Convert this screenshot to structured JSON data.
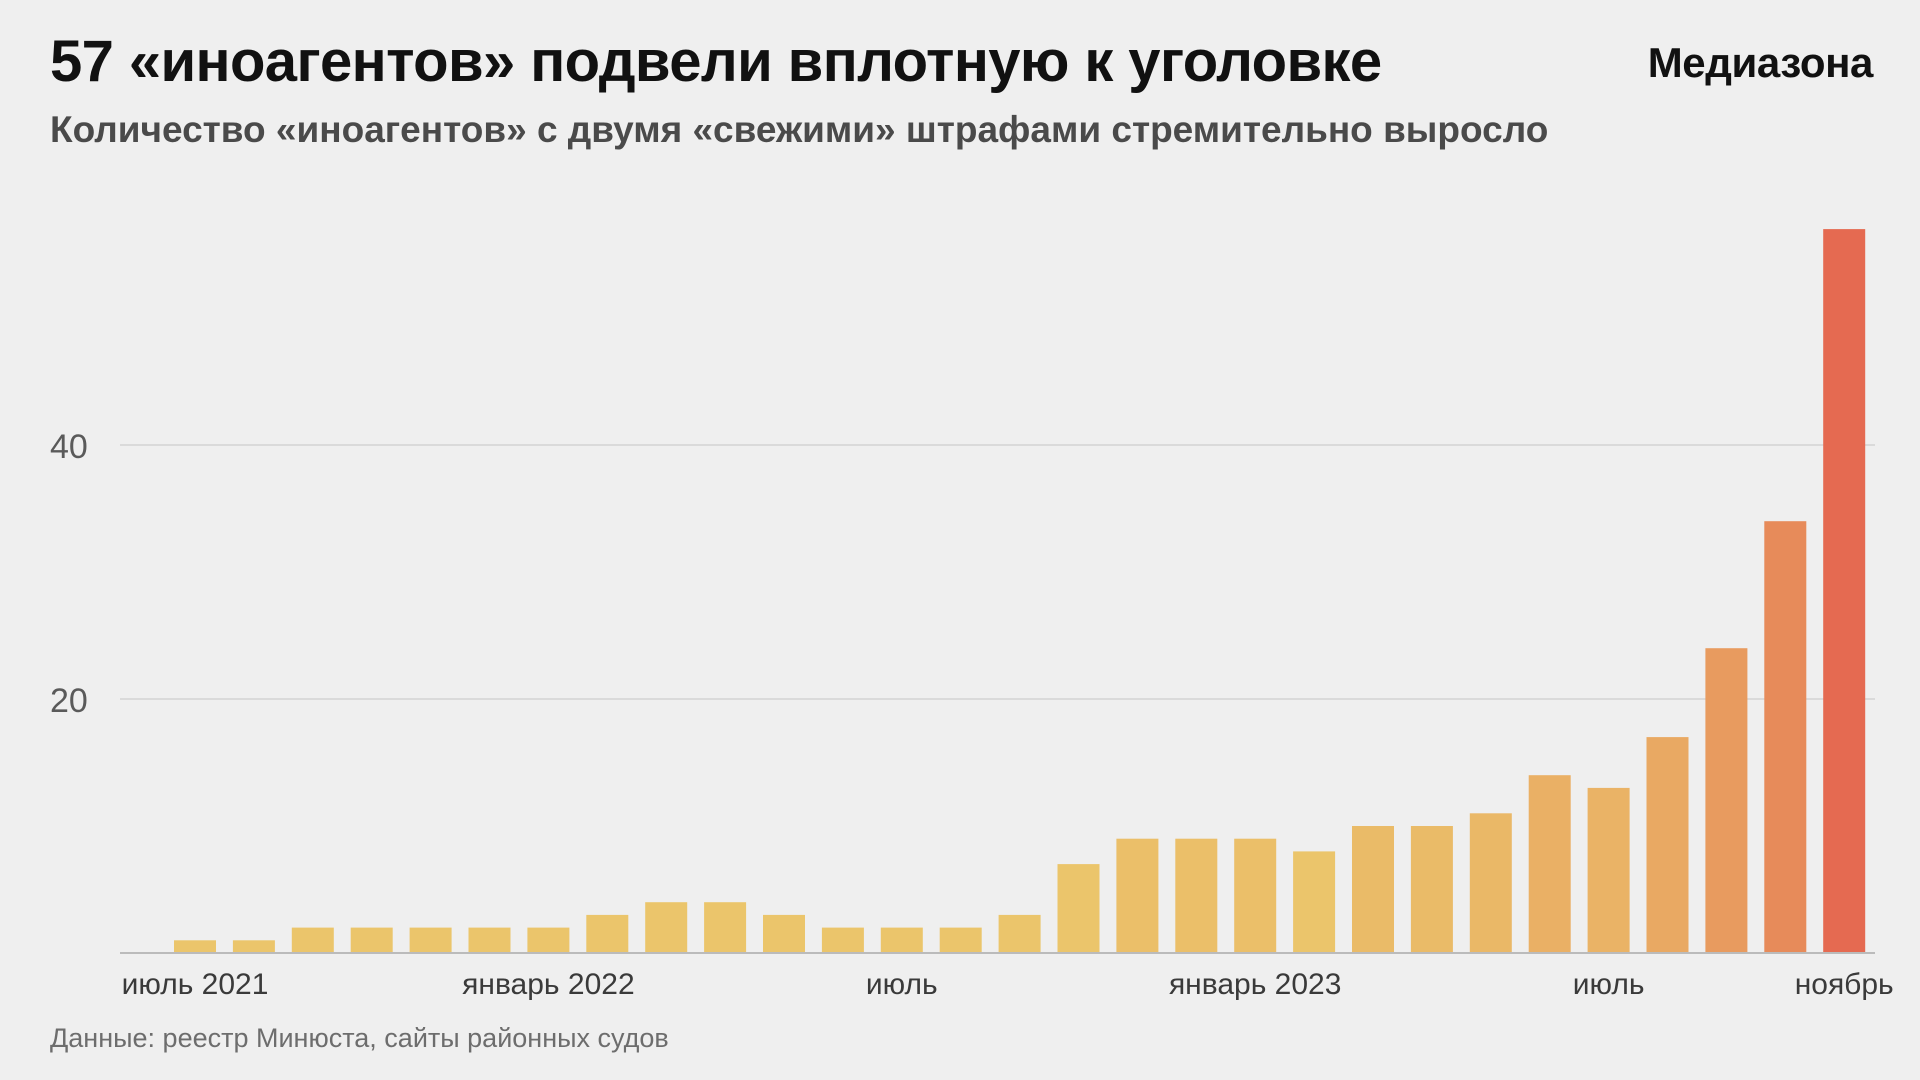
{
  "header": {
    "title": "57 «иноагентов» подвели вплотную к уголовке",
    "brand": "Медиазона",
    "subtitle": "Количество «иноагентов» с двумя «свежими» штрафами стремительно выросло"
  },
  "footer": {
    "source": "Данные: реестр Минюста, сайты районных судов"
  },
  "chart_data": {
    "type": "bar",
    "title": "57 «иноагентов» подвели вплотную к уголовке",
    "subtitle": "Количество «иноагентов» с двумя «свежими» штрафами стремительно выросло",
    "x_tick_labels": [
      {
        "index": 0,
        "label": "июль 2021"
      },
      {
        "index": 6,
        "label": "январь 2022"
      },
      {
        "index": 12,
        "label": "июль"
      },
      {
        "index": 18,
        "label": "январь 2023"
      },
      {
        "index": 24,
        "label": "июль"
      },
      {
        "index": 28,
        "label": "ноябрь"
      }
    ],
    "values": [
      1,
      1,
      2,
      2,
      2,
      2,
      2,
      3,
      4,
      4,
      3,
      2,
      2,
      2,
      3,
      7,
      9,
      9,
      9,
      8,
      10,
      10,
      11,
      14,
      13,
      17,
      24,
      34,
      57
    ],
    "yticks": [
      20,
      40
    ],
    "ylim": [
      0,
      60
    ],
    "grid": true,
    "colors": {
      "bar_start": "#ebc56b",
      "bar_end": "#e56a51",
      "grid": "#d3d3d3",
      "axis": "#bbbbbb",
      "tick_text": "#5a5a5a",
      "xtick_text": "#3a3a3a"
    }
  }
}
